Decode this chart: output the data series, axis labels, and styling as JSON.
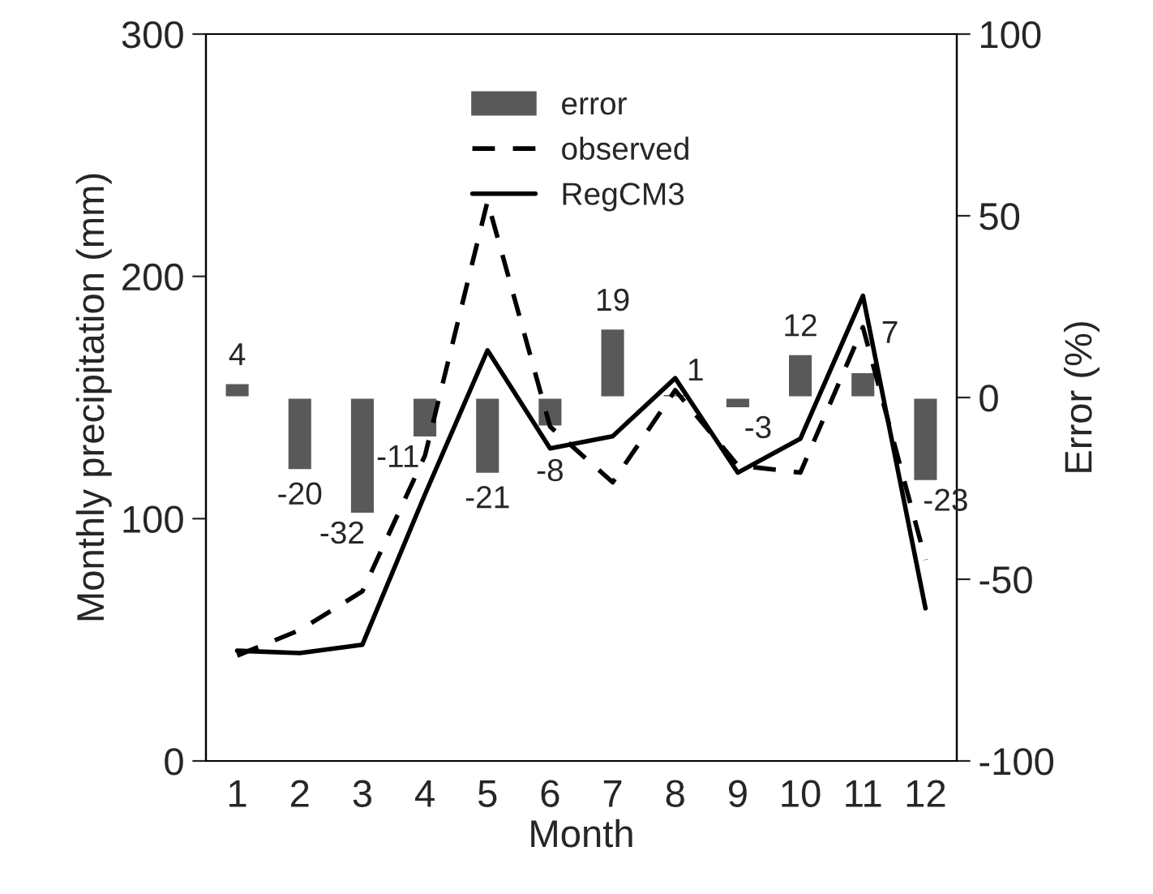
{
  "chart_data": {
    "type": "line",
    "xlabel": "Month",
    "ylabel": "Monthly precipitation (mm)",
    "y2label": "Error (%)",
    "categories": [
      "1",
      "2",
      "3",
      "4",
      "5",
      "6",
      "7",
      "8",
      "9",
      "10",
      "11",
      "12"
    ],
    "series": [
      {
        "name": "error",
        "type": "bar",
        "axis": "y2",
        "color": "#595959",
        "values": [
          4,
          -20,
          -32,
          -11,
          -21,
          -8,
          19,
          1,
          -3,
          12,
          7,
          -23
        ],
        "data_labels": true
      },
      {
        "name": "observed",
        "color": "#000000",
        "line_style": "dashed",
        "values": [
          43.5,
          54,
          70,
          126,
          231,
          138,
          115,
          153,
          122,
          119,
          179,
          83
        ]
      },
      {
        "name": "RegCM3",
        "color": "#000000",
        "line_style": "solid",
        "values": [
          45.5,
          44.5,
          48,
          110,
          169.5,
          129,
          134,
          158,
          119,
          133,
          192,
          63
        ]
      }
    ],
    "ylim": [
      0,
      300
    ],
    "yticks": [
      0,
      100,
      200,
      300
    ],
    "y2lim": [
      -100,
      100
    ],
    "y2ticks": [
      -100,
      -50,
      0,
      50,
      100
    ],
    "legend": "top",
    "grid": false,
    "marker": "none"
  }
}
